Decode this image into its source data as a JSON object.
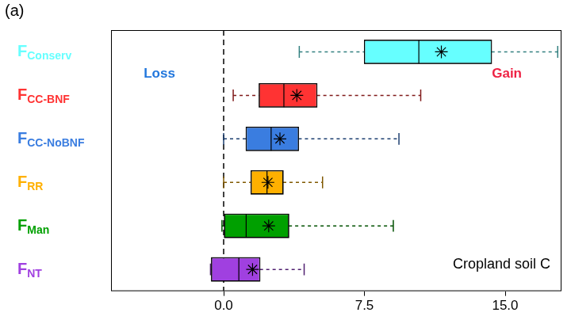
{
  "chart_data": {
    "type": "boxplot",
    "orientation": "horizontal",
    "panel_label": "(a)",
    "categories": [
      "FConserv",
      "FCC-BNF",
      "FCC-NoBNF",
      "FRR",
      "FMan",
      "FNT"
    ],
    "colors": [
      "#66ffff",
      "#ff3333",
      "#3a7de0",
      "#ffb000",
      "#00a000",
      "#a040e0"
    ],
    "boxes": [
      {
        "min": 4.03,
        "q1": 7.5,
        "median": 10.4,
        "q3": 14.27,
        "max": 17.8,
        "mean": 11.6
      },
      {
        "min": 0.51,
        "q1": 1.89,
        "median": 3.21,
        "q3": 4.97,
        "max": 10.5,
        "mean": 3.9
      },
      {
        "min": 0.0,
        "q1": 1.2,
        "median": 2.53,
        "q3": 3.99,
        "max": 9.34,
        "mean": 3.0
      },
      {
        "min": 0.0,
        "q1": 1.46,
        "median": 2.31,
        "q3": 3.17,
        "max": 5.27,
        "mean": 2.36
      },
      {
        "min": -0.09,
        "q1": 0.04,
        "median": 1.2,
        "q3": 3.47,
        "max": 9.04,
        "mean": 2.4
      },
      {
        "min": -0.7,
        "q1": -0.65,
        "median": 0.81,
        "q3": 1.93,
        "max": 4.29,
        "mean": 1.54
      }
    ],
    "xlim": [
      -6,
      18
    ],
    "xticks": [
      {
        "value": 0,
        "label": "0.0"
      },
      {
        "value": 7.5,
        "label": "7.5"
      },
      {
        "value": 15,
        "label": "15.0"
      }
    ],
    "reference_x": 0,
    "annotations": [
      {
        "text": "Loss",
        "color": "#2277dd"
      },
      {
        "text": "Gain",
        "color": "#ee2244"
      },
      {
        "text": "Cropland soil C",
        "color": "#000000"
      }
    ],
    "grid": false
  }
}
